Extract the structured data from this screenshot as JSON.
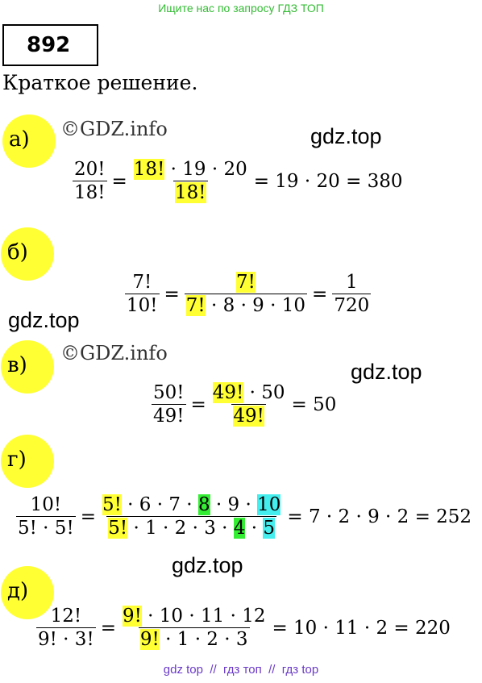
{
  "header": {
    "search_hint": "Ищите нас по запросу ГДЗ ТОП",
    "number": "892",
    "subtitle": "Краткое решение."
  },
  "watermarks": [
    "©GDZ.info",
    "©GDZ.info",
    "gdz.top",
    "gdz.top",
    "gdz.top",
    "gdz.top"
  ],
  "parts": [
    {
      "label": "а)",
      "expr": [
        {
          "num": [
            {
              "t": "20!"
            }
          ],
          "den": [
            {
              "t": "18!"
            }
          ]
        },
        {
          "t": "="
        },
        {
          "num": [
            {
              "t": "18!",
              "hl": "#ffff33"
            },
            {
              "t": " · 19 · 20"
            }
          ],
          "den": [
            {
              "t": "18!",
              "hl": "#ffff33"
            }
          ]
        },
        {
          "t": "= 19 · 20 = 380"
        }
      ]
    },
    {
      "label": "б)",
      "expr": [
        {
          "num": [
            {
              "t": "7!"
            }
          ],
          "den": [
            {
              "t": "10!"
            }
          ]
        },
        {
          "t": "="
        },
        {
          "num": [
            {
              "t": "7!",
              "hl": "#ffff33"
            }
          ],
          "den": [
            {
              "t": "7!",
              "hl": "#ffff33"
            },
            {
              "t": " · 8 · 9 · 10"
            }
          ]
        },
        {
          "t": "="
        },
        {
          "num": [
            {
              "t": "1"
            }
          ],
          "den": [
            {
              "t": "720"
            }
          ]
        }
      ]
    },
    {
      "label": "в)",
      "expr": [
        {
          "num": [
            {
              "t": "50!"
            }
          ],
          "den": [
            {
              "t": "49!"
            }
          ]
        },
        {
          "t": "="
        },
        {
          "num": [
            {
              "t": "49!",
              "hl": "#ffff33"
            },
            {
              "t": " · 50"
            }
          ],
          "den": [
            {
              "t": "49!",
              "hl": "#ffff33"
            }
          ]
        },
        {
          "t": "= 50"
        }
      ]
    },
    {
      "label": "г)",
      "expr": [
        {
          "num": [
            {
              "t": "10!"
            }
          ],
          "den": [
            {
              "t": "5! · 5!"
            }
          ]
        },
        {
          "t": "="
        },
        {
          "num": [
            {
              "t": "5!",
              "hl": "#ffff33"
            },
            {
              "t": " · 6 · 7 · "
            },
            {
              "t": "8",
              "hl": "#33ee33"
            },
            {
              "t": " · 9 · "
            },
            {
              "t": "10",
              "hl": "#44eeee"
            }
          ],
          "den": [
            {
              "t": "5!",
              "hl": "#ffff33"
            },
            {
              "t": " · 1 · 2 · 3 · "
            },
            {
              "t": "4",
              "hl": "#33ee33"
            },
            {
              "t": " · "
            },
            {
              "t": "5",
              "hl": "#44eeee"
            }
          ]
        },
        {
          "t": "= 7 · 2 · 9 · 2 = 252"
        }
      ]
    },
    {
      "label": "д)",
      "expr": [
        {
          "num": [
            {
              "t": "12!"
            }
          ],
          "den": [
            {
              "t": "9! · 3!"
            }
          ]
        },
        {
          "t": "="
        },
        {
          "num": [
            {
              "t": "9!",
              "hl": "#ffff33"
            },
            {
              "t": " · 10 · 11 · 12"
            }
          ],
          "den": [
            {
              "t": "9!",
              "hl": "#ffff33"
            },
            {
              "t": " · 1 · 2 · 3"
            }
          ]
        },
        {
          "t": "= 10 · 11 · 2 = 220"
        }
      ]
    }
  ],
  "footer": "gdz top  //  гдз топ  //  гдз top"
}
